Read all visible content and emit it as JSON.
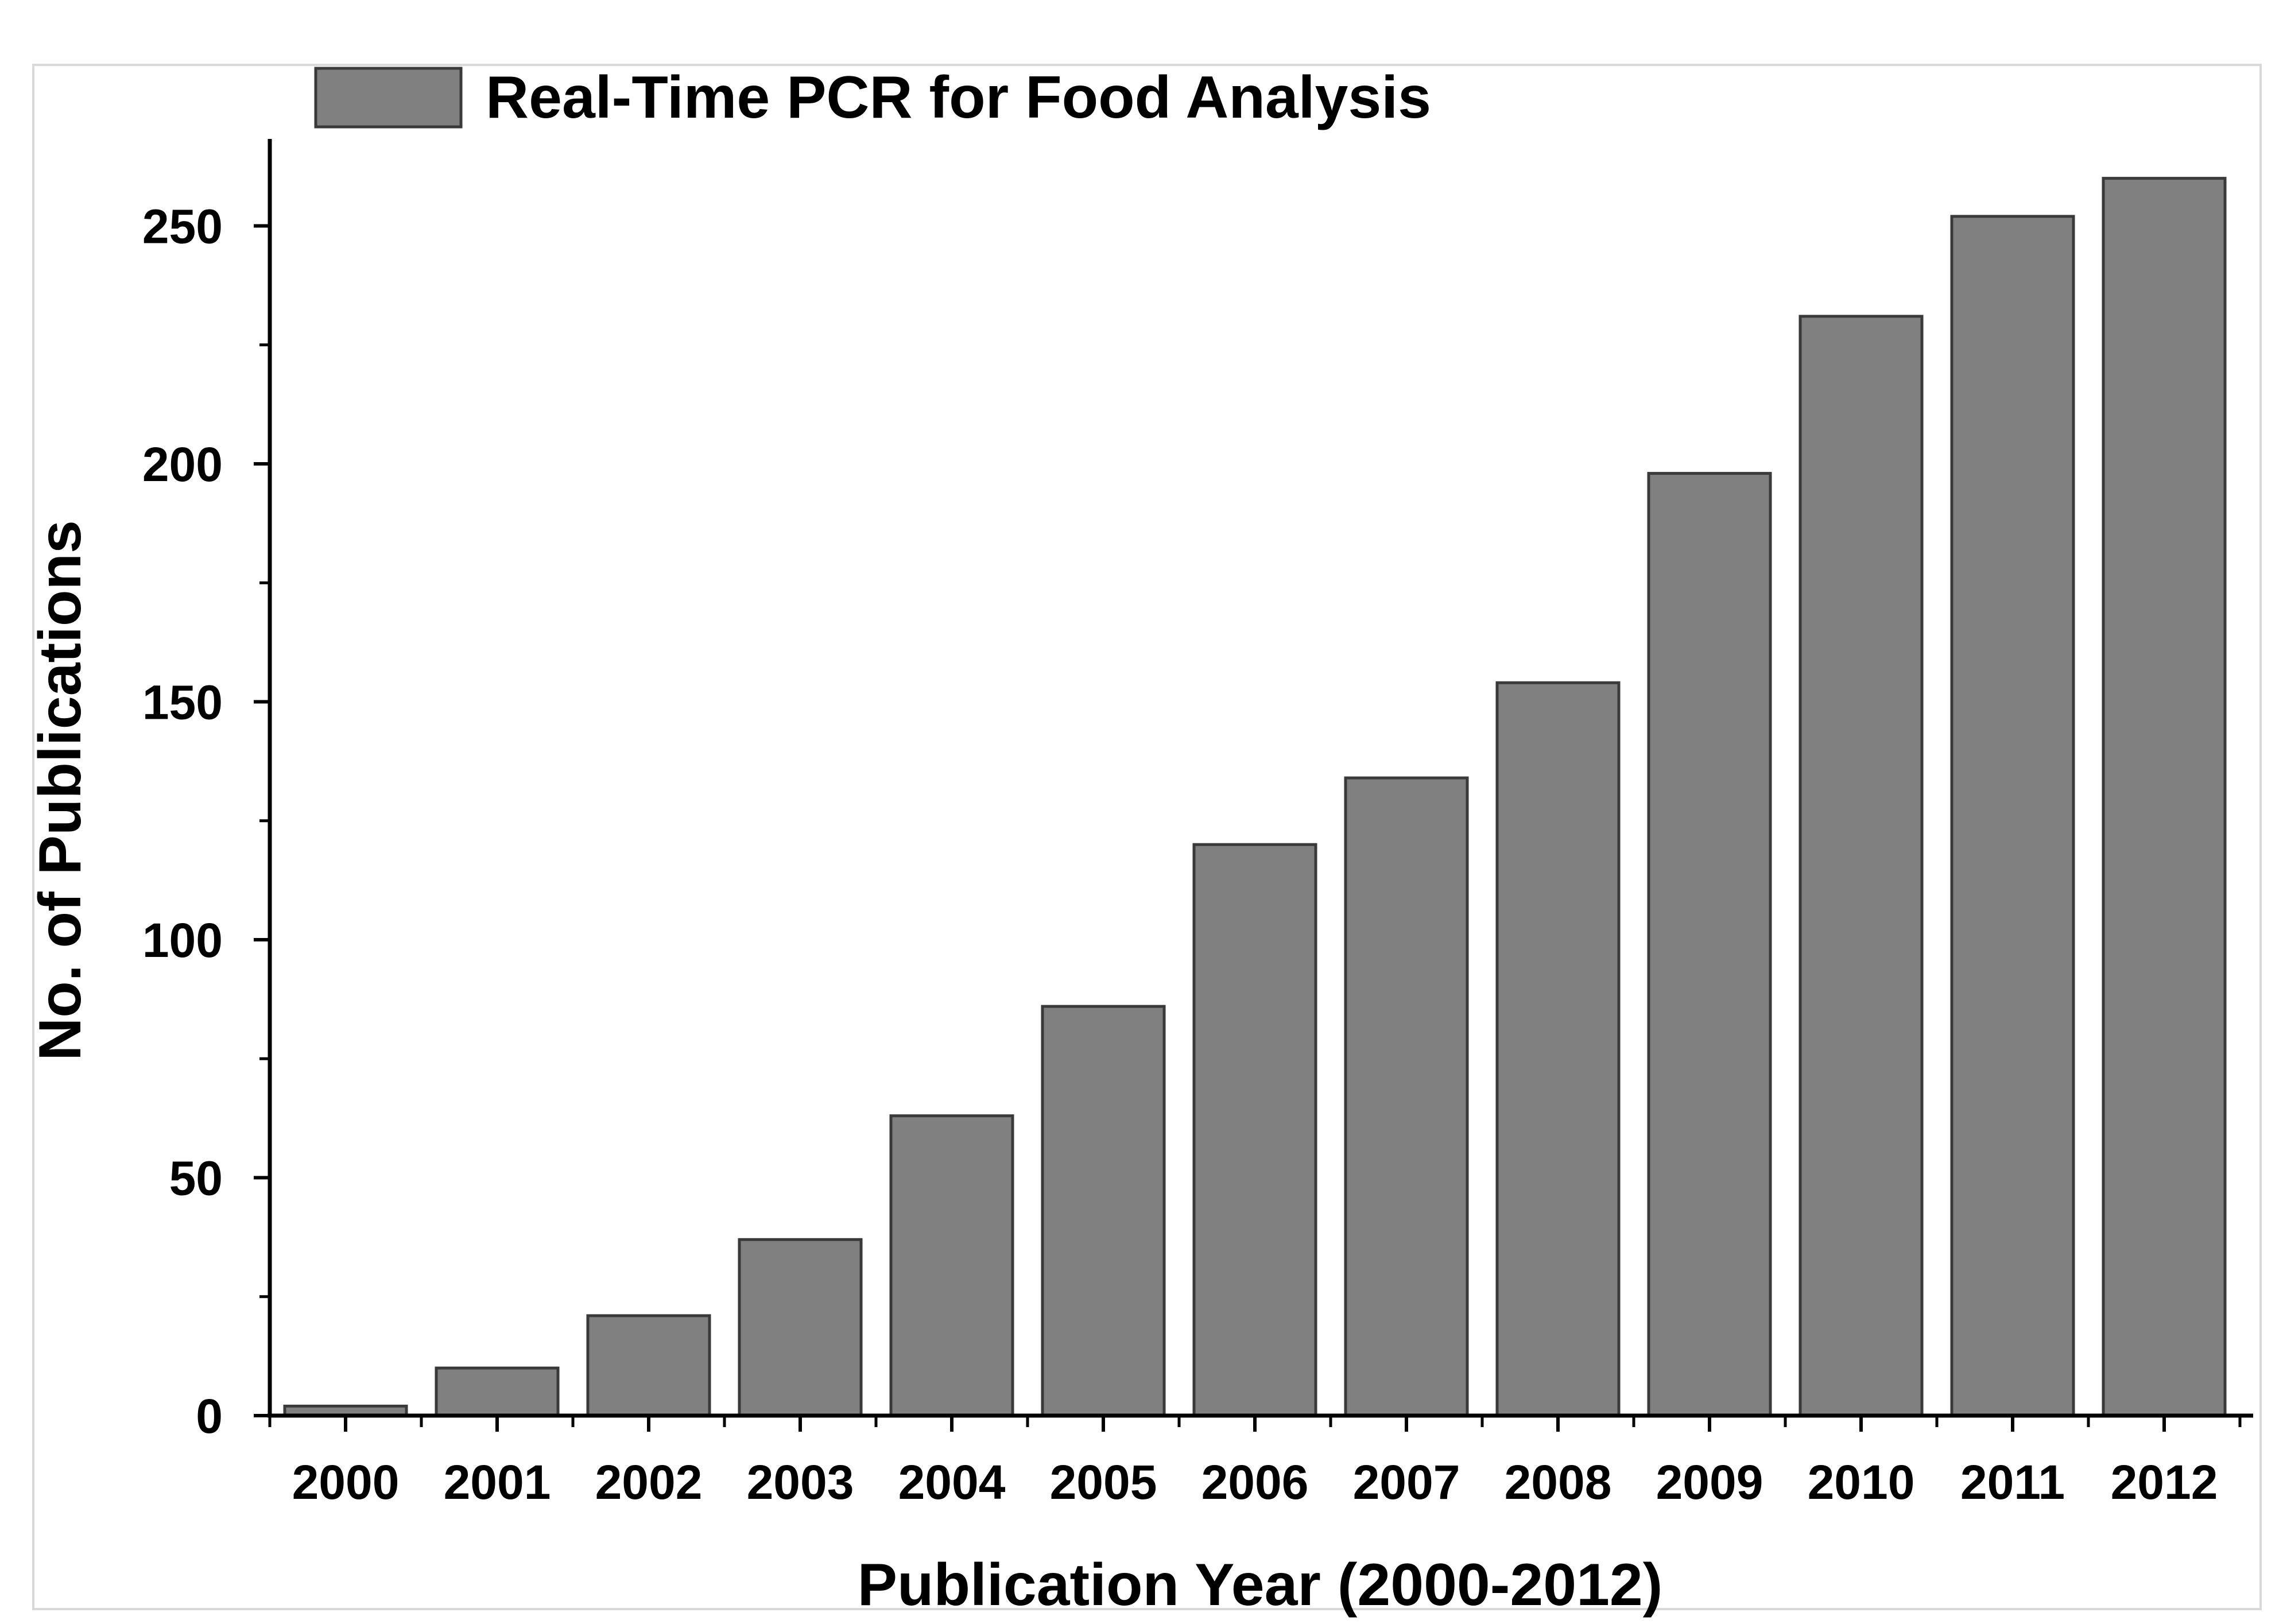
{
  "chart_data": {
    "type": "bar",
    "title": "",
    "xlabel": "Publication Year (2000-2012)",
    "ylabel": "No. of Publications",
    "categories": [
      "2000",
      "2001",
      "2002",
      "2003",
      "2004",
      "2005",
      "2006",
      "2007",
      "2008",
      "2009",
      "2010",
      "2011",
      "2012"
    ],
    "series": [
      {
        "name": "Real-Time PCR for Food Analysis",
        "values": [
          2,
          10,
          21,
          37,
          63,
          86,
          120,
          134,
          154,
          198,
          231,
          252,
          260
        ]
      }
    ],
    "ylim": [
      0,
      268
    ],
    "yticks": [
      0,
      50,
      100,
      150,
      200,
      250
    ],
    "ytick_labels": [
      "0",
      "50",
      "100",
      "150",
      "200",
      "250"
    ],
    "grid": false,
    "legend": "top-left",
    "colors": {
      "bar_fill": "#808080",
      "bar_stroke": "#3a3a3a",
      "axis": "#000000",
      "frame": "#d9d9d9"
    }
  }
}
